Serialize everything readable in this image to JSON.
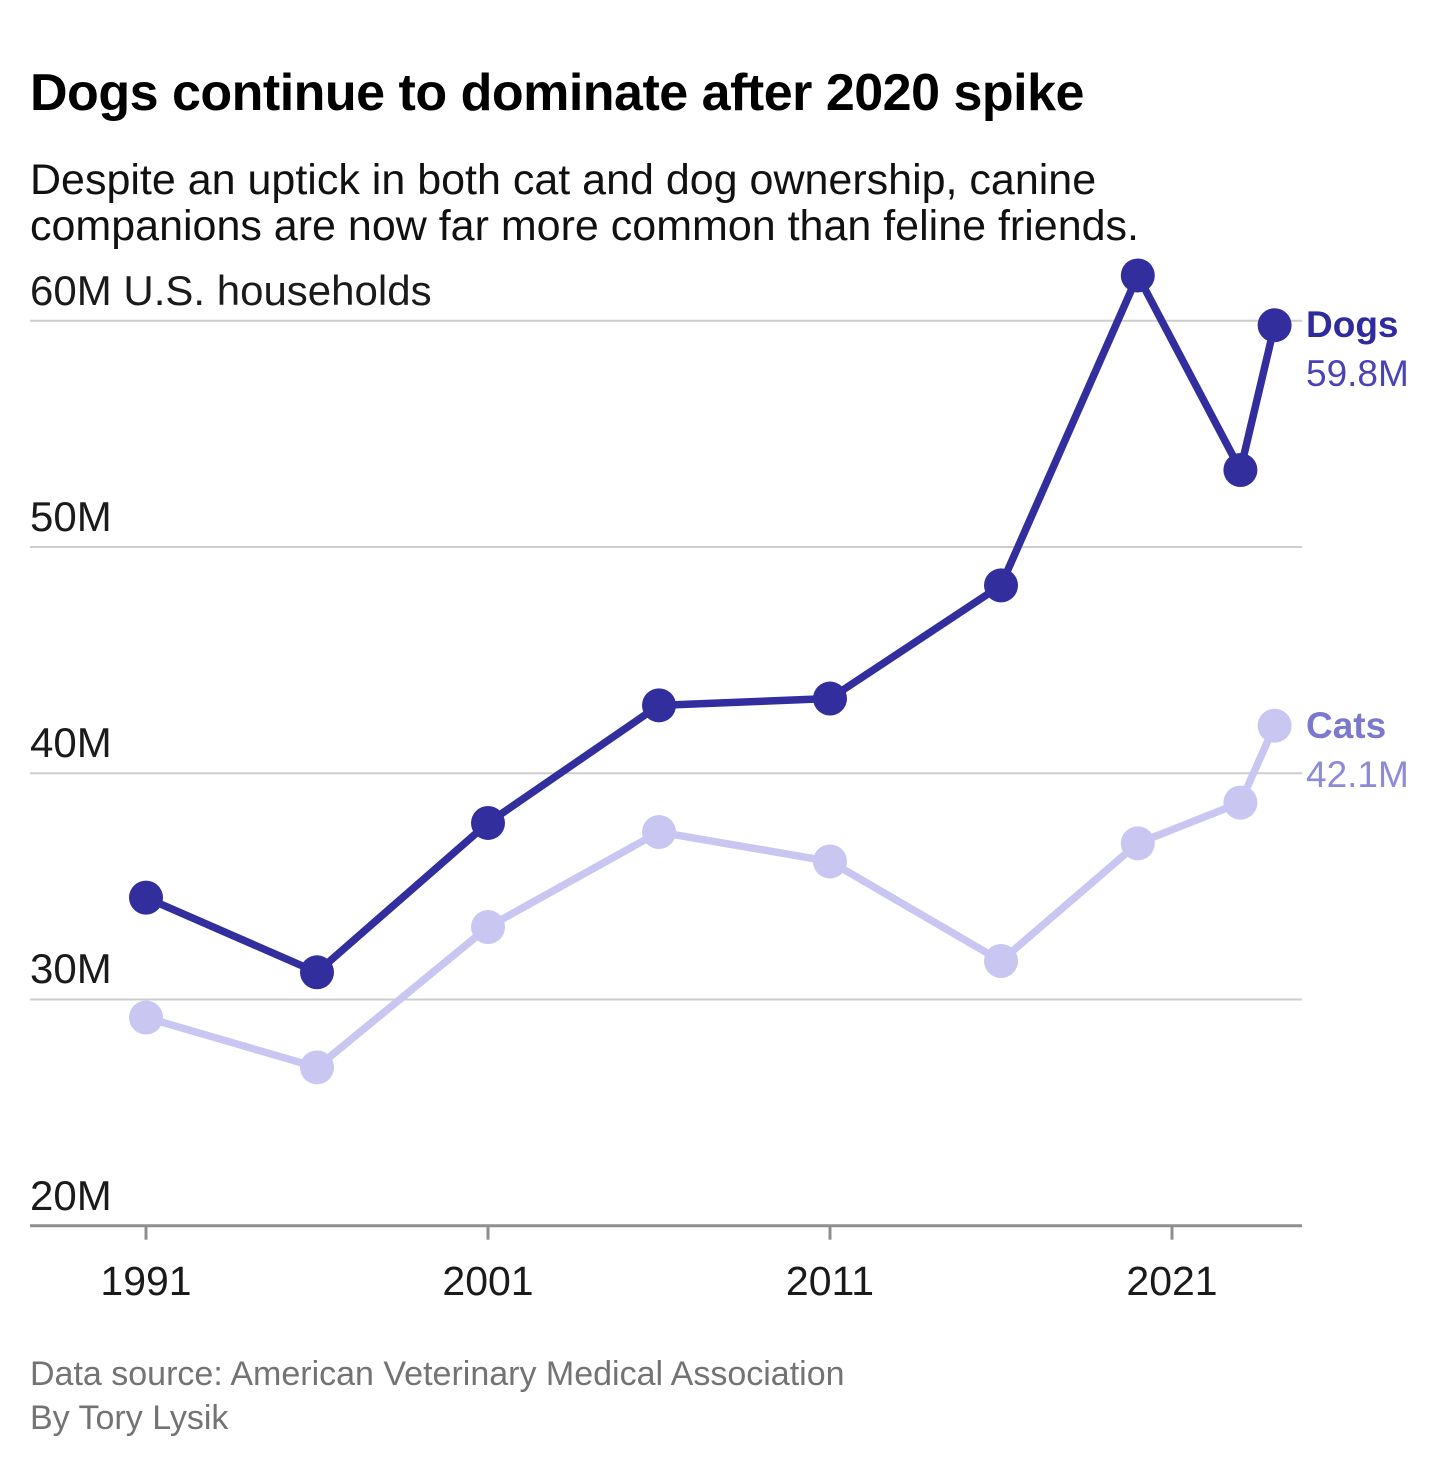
{
  "header": {
    "title": "Dogs continue to dominate after 2020 spike",
    "subtitle": "Despite an uptick in both cat and dog ownership, canine companions are now far more common than feline friends."
  },
  "chart_data": {
    "type": "line",
    "x": [
      1991,
      1996,
      2001,
      2006,
      2011,
      2016,
      2020,
      2023,
      2024
    ],
    "series": [
      {
        "name": "Dogs",
        "values": [
          34.5,
          31.2,
          37.8,
          43.0,
          43.3,
          48.3,
          62.0,
          53.4,
          59.8
        ],
        "color": "#332e9e",
        "label_color": "#2f2b9e",
        "value_color": "#4a43b6",
        "end_label": "59.8M"
      },
      {
        "name": "Cats",
        "values": [
          29.2,
          27.0,
          33.2,
          37.4,
          36.1,
          31.7,
          36.9,
          38.7,
          42.1
        ],
        "color": "#c9c6f2",
        "label_color": "#7b78ce",
        "value_color": "#8d8ad8",
        "end_label": "42.1M"
      }
    ],
    "y_ticks": [
      {
        "value": 60,
        "label": "60M U.S. households"
      },
      {
        "value": 50,
        "label": "50M"
      },
      {
        "value": 40,
        "label": "40M"
      },
      {
        "value": 30,
        "label": "30M"
      },
      {
        "value": 20,
        "label": "20M"
      }
    ],
    "x_ticks": [
      {
        "value": 1991,
        "label": "1991"
      },
      {
        "value": 2001,
        "label": "2001"
      },
      {
        "value": 2011,
        "label": "2011"
      },
      {
        "value": 2021,
        "label": "2021"
      }
    ],
    "ylabel": "U.S. households (millions)",
    "ylim": [
      20,
      63
    ],
    "grid": true,
    "legend_position": "end-of-line-right",
    "grid_color": "#cdcdcd",
    "axis_color": "#8f8f8f"
  },
  "footer": {
    "source": "Data source: American Veterinary Medical Association",
    "byline": "By Tory Lysik"
  }
}
